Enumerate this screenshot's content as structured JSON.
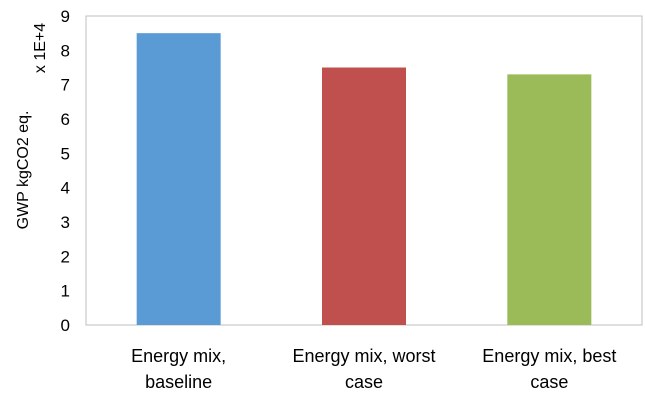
{
  "chart_data": {
    "type": "bar",
    "categories": [
      [
        "Energy mix,",
        "baseline"
      ],
      [
        "Energy mix, worst",
        "case"
      ],
      [
        "Energy mix, best",
        "case"
      ]
    ],
    "values": [
      8.5,
      7.5,
      7.3
    ],
    "colors": [
      "#5b9bd5",
      "#c0504d",
      "#9bbb59"
    ],
    "ylabel": "GWP kgCO2 eq.",
    "scale_label": "x 1E+4",
    "ylim": [
      0,
      9
    ],
    "yticks": [
      0,
      1,
      2,
      3,
      4,
      5,
      6,
      7,
      8,
      9
    ],
    "grid": false,
    "legend": "none"
  }
}
